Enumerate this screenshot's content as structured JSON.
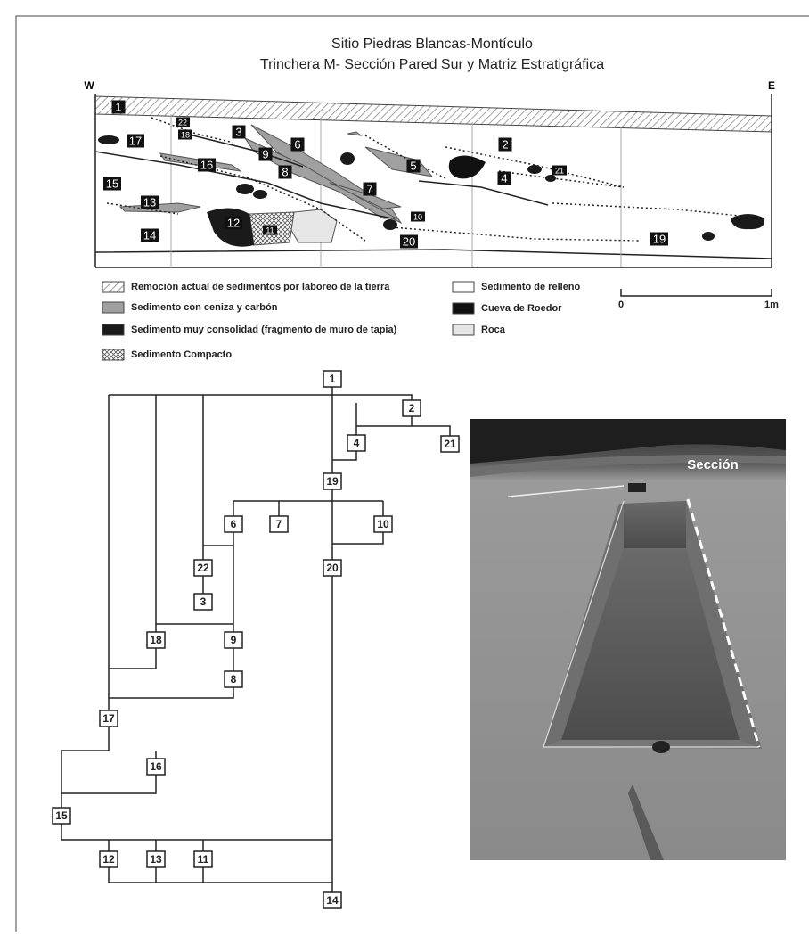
{
  "header": {
    "title": "Sitio Piedras Blancas-Montículo",
    "subtitle": "Trinchera M- Sección Pared Sur y Matriz Estratigráfica"
  },
  "section": {
    "west": "W",
    "east": "E",
    "labels": [
      "1",
      "22",
      "18",
      "3",
      "6",
      "9",
      "8",
      "17",
      "16",
      "15",
      "13",
      "12",
      "11",
      "14",
      "7",
      "10",
      "20",
      "5",
      "2",
      "4",
      "21",
      "19"
    ]
  },
  "legend": {
    "items": [
      "Remoción actual de sedimentos por laboreo de la tierra",
      "Sedimento con ceniza y carbón",
      "Sedimento muy consolidad (fragmento de muro de tapia)",
      "Sedimento Compacto",
      "Sedimento de relleno",
      "Cueva de Roedor",
      "Roca"
    ],
    "scale": [
      "0",
      "1m"
    ]
  },
  "matrix": {
    "nodes": [
      "1",
      "2",
      "21",
      "4",
      "19",
      "6",
      "7",
      "10",
      "22",
      "20",
      "3",
      "18",
      "9",
      "8",
      "17",
      "16",
      "15",
      "12",
      "13",
      "11",
      "14"
    ]
  },
  "photo": {
    "label": "Sección"
  }
}
